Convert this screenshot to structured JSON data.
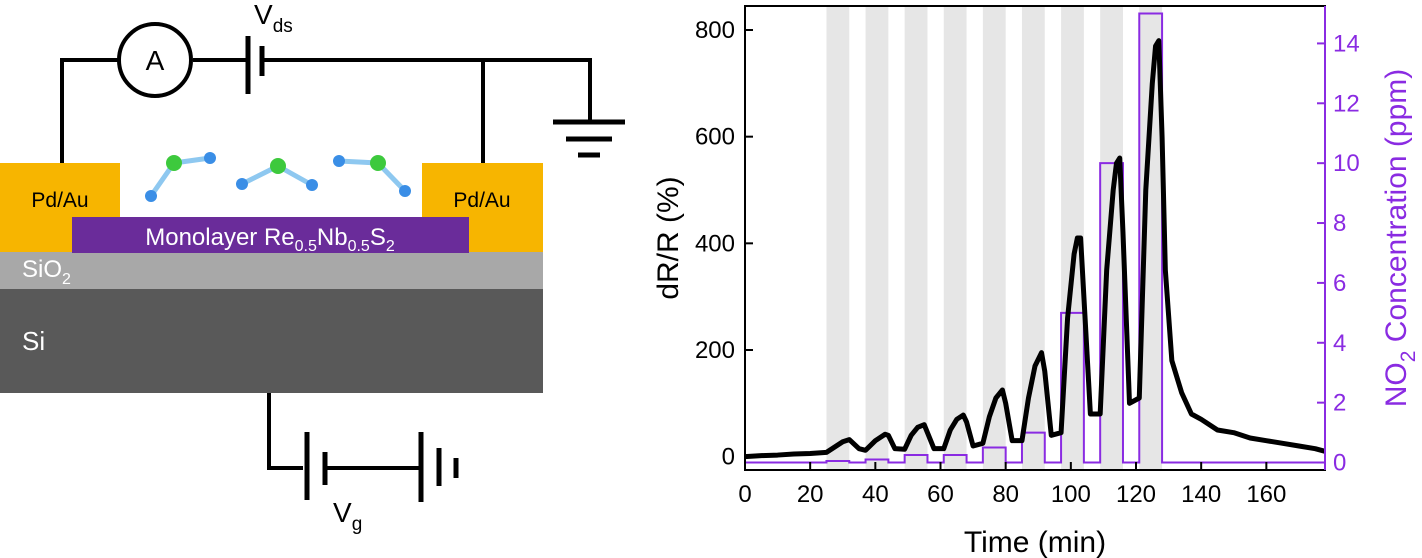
{
  "device": {
    "contact_left": "Pd/Au",
    "contact_right": "Pd/Au",
    "channel_label": {
      "prefix": "Monolayer Re",
      "sub1": "0.5",
      "mid": "Nb",
      "sub2": "0.5",
      "mid2": "S",
      "sub3": "2"
    },
    "oxide_label": {
      "main": "SiO",
      "sub": "2"
    },
    "substrate_label": "Si",
    "ammeter_label": "A",
    "vds_label": {
      "main": "V",
      "sub": "ds"
    },
    "vg_label": {
      "main": "V",
      "sub": "g"
    },
    "colors": {
      "gold": "#f7b500",
      "channel": "#6a2c9a",
      "oxide": "#a8a8a8",
      "substrate": "#595959",
      "molecule_n": "#3a8ee6",
      "molecule_o": "#3dc93d"
    }
  },
  "chart_data": {
    "type": "line",
    "xlabel": "Time (min)",
    "ylabel": "dR/R (%)",
    "ylabel_right": {
      "prefix": "NO",
      "sub": "2",
      "suffix": " Concentration (ppm)"
    },
    "xlim": [
      0,
      178
    ],
    "ylim": [
      -25,
      845
    ],
    "ylim_right": [
      -0.25,
      15.25
    ],
    "xticks": [
      0,
      20,
      40,
      60,
      80,
      100,
      120,
      140,
      160
    ],
    "yticks": [
      0,
      200,
      400,
      600,
      800
    ],
    "yticks_right": [
      0,
      2,
      4,
      6,
      8,
      10,
      12,
      14
    ],
    "grid": false,
    "colors": {
      "response": "#000000",
      "concentration": "#8a2be2",
      "exposure_band": "#e6e6e6"
    },
    "exposure_bands": [
      [
        25,
        32
      ],
      [
        37,
        44
      ],
      [
        49,
        56
      ],
      [
        61,
        68
      ],
      [
        73,
        80
      ],
      [
        85,
        92
      ],
      [
        97,
        104
      ],
      [
        109,
        116
      ],
      [
        121,
        128
      ]
    ],
    "series": [
      {
        "axis": "left",
        "x": [
          0,
          5,
          10,
          15,
          20,
          25,
          28,
          30,
          32,
          35,
          37,
          40,
          43,
          44,
          46,
          49,
          51,
          53,
          55,
          56,
          58,
          61,
          63,
          65,
          67,
          68,
          70,
          73,
          75,
          77,
          79,
          80,
          82,
          85,
          87,
          89,
          91,
          92,
          94,
          97,
          99,
          101,
          102,
          103,
          104,
          106,
          109,
          111,
          113,
          114,
          115,
          116,
          118,
          121,
          123,
          125,
          126,
          127,
          128,
          129,
          131,
          134,
          137,
          140,
          145,
          150,
          155,
          160,
          165,
          170,
          175,
          178
        ],
        "y": [
          0,
          2,
          3,
          5,
          6,
          8,
          20,
          28,
          32,
          15,
          12,
          30,
          42,
          40,
          15,
          14,
          40,
          55,
          60,
          45,
          15,
          15,
          50,
          70,
          78,
          65,
          20,
          25,
          75,
          110,
          125,
          100,
          30,
          30,
          110,
          170,
          195,
          160,
          40,
          45,
          260,
          380,
          410,
          410,
          300,
          80,
          80,
          350,
          500,
          550,
          560,
          420,
          100,
          110,
          500,
          700,
          770,
          780,
          600,
          350,
          180,
          120,
          80,
          70,
          50,
          45,
          35,
          30,
          25,
          20,
          15,
          10
        ]
      },
      {
        "axis": "right",
        "x": [
          0,
          25,
          32,
          37,
          44,
          49,
          56,
          61,
          68,
          73,
          80,
          85,
          92,
          97,
          104,
          109,
          116,
          121,
          128,
          178
        ],
        "y": [
          0,
          0.05,
          0,
          0.1,
          0,
          0.25,
          0,
          0.25,
          0,
          0.5,
          0,
          1,
          0,
          5,
          0,
          10,
          0,
          15,
          0,
          0
        ]
      }
    ]
  }
}
